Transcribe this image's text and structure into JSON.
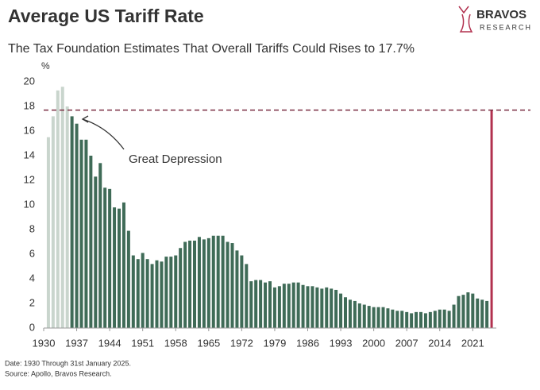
{
  "chart_data": {
    "type": "bar",
    "title": "Average US Tariff Rate",
    "subtitle": "The Tax Foundation Estimates That Overall Tariffs Could Rises to 17.7%",
    "y_unit": "%",
    "annotation": "Great Depression",
    "notes": [
      "Date: 1930 Through 31st January 2025.",
      "Source: Apollo, Bravos Research."
    ],
    "logo": [
      "BRAVOS",
      "RESEARCH"
    ],
    "x": [
      1931,
      1932,
      1933,
      1934,
      1935,
      1936,
      1937,
      1938,
      1939,
      1940,
      1941,
      1942,
      1943,
      1944,
      1945,
      1946,
      1947,
      1948,
      1949,
      1950,
      1951,
      1952,
      1953,
      1954,
      1955,
      1956,
      1957,
      1958,
      1959,
      1960,
      1961,
      1962,
      1963,
      1964,
      1965,
      1966,
      1967,
      1968,
      1969,
      1970,
      1971,
      1972,
      1973,
      1974,
      1975,
      1976,
      1977,
      1978,
      1979,
      1980,
      1981,
      1982,
      1983,
      1984,
      1985,
      1986,
      1987,
      1988,
      1989,
      1990,
      1991,
      1992,
      1993,
      1994,
      1995,
      1996,
      1997,
      1998,
      1999,
      2000,
      2001,
      2002,
      2003,
      2004,
      2005,
      2006,
      2007,
      2008,
      2009,
      2010,
      2011,
      2012,
      2013,
      2014,
      2015,
      2016,
      2017,
      2018,
      2019,
      2020,
      2021,
      2022,
      2023,
      2024,
      2025
    ],
    "values": [
      15.5,
      17.2,
      19.3,
      19.6,
      18.0,
      17.2,
      16.6,
      15.3,
      15.3,
      14.0,
      12.3,
      13.4,
      11.4,
      11.3,
      9.8,
      9.7,
      10.2,
      7.9,
      5.9,
      5.6,
      6.1,
      5.6,
      5.2,
      5.5,
      5.4,
      5.8,
      5.8,
      5.9,
      6.5,
      7.0,
      7.1,
      7.1,
      7.4,
      7.2,
      7.3,
      7.5,
      7.5,
      7.5,
      7.0,
      6.9,
      6.3,
      5.9,
      5.2,
      3.8,
      3.9,
      3.9,
      3.7,
      3.8,
      3.3,
      3.4,
      3.6,
      3.6,
      3.7,
      3.7,
      3.5,
      3.4,
      3.4,
      3.3,
      3.2,
      3.3,
      3.2,
      3.1,
      2.8,
      2.5,
      2.3,
      2.2,
      2.0,
      1.9,
      1.8,
      1.7,
      1.7,
      1.7,
      1.6,
      1.5,
      1.4,
      1.4,
      1.3,
      1.2,
      1.3,
      1.3,
      1.2,
      1.3,
      1.4,
      1.5,
      1.5,
      1.4,
      1.9,
      2.6,
      2.7,
      2.9,
      2.8,
      2.4,
      2.3,
      2.2,
      17.7
    ],
    "colors": [
      "#c9d5cd",
      "#c9d5cd",
      "#c9d5cd",
      "#c9d5cd",
      "#c9d5cd",
      "#3f6b57",
      "#3f6b57",
      "#3f6b57",
      "#3f6b57",
      "#3f6b57",
      "#3f6b57",
      "#3f6b57",
      "#3f6b57",
      "#3f6b57",
      "#3f6b57",
      "#3f6b57",
      "#3f6b57",
      "#3f6b57",
      "#3f6b57",
      "#3f6b57",
      "#3f6b57",
      "#3f6b57",
      "#3f6b57",
      "#3f6b57",
      "#3f6b57",
      "#3f6b57",
      "#3f6b57",
      "#3f6b57",
      "#3f6b57",
      "#3f6b57",
      "#3f6b57",
      "#3f6b57",
      "#3f6b57",
      "#3f6b57",
      "#3f6b57",
      "#3f6b57",
      "#3f6b57",
      "#3f6b57",
      "#3f6b57",
      "#3f6b57",
      "#3f6b57",
      "#3f6b57",
      "#3f6b57",
      "#3f6b57",
      "#3f6b57",
      "#3f6b57",
      "#3f6b57",
      "#3f6b57",
      "#3f6b57",
      "#3f6b57",
      "#3f6b57",
      "#3f6b57",
      "#3f6b57",
      "#3f6b57",
      "#3f6b57",
      "#3f6b57",
      "#3f6b57",
      "#3f6b57",
      "#3f6b57",
      "#3f6b57",
      "#3f6b57",
      "#3f6b57",
      "#3f6b57",
      "#3f6b57",
      "#3f6b57",
      "#3f6b57",
      "#3f6b57",
      "#3f6b57",
      "#3f6b57",
      "#3f6b57",
      "#3f6b57",
      "#3f6b57",
      "#3f6b57",
      "#3f6b57",
      "#3f6b57",
      "#3f6b57",
      "#3f6b57",
      "#3f6b57",
      "#3f6b57",
      "#3f6b57",
      "#3f6b57",
      "#3f6b57",
      "#3f6b57",
      "#3f6b57",
      "#3f6b57",
      "#3f6b57",
      "#3f6b57",
      "#3f6b57",
      "#3f6b57",
      "#3f6b57",
      "#3f6b57",
      "#3f6b57",
      "#3f6b57",
      "#3f6b57",
      "#b2314f"
    ],
    "reference_line": 17.7,
    "reference_color": "#7a2d42",
    "xlim": [
      1930,
      2026
    ],
    "xticks": [
      1930,
      1937,
      1944,
      1951,
      1958,
      1965,
      1972,
      1979,
      1986,
      1993,
      2000,
      2007,
      2014,
      2021
    ],
    "ylim": [
      0,
      20
    ],
    "yticks": [
      0,
      2,
      4,
      6,
      8,
      10,
      12,
      14,
      16,
      18,
      20
    ]
  }
}
